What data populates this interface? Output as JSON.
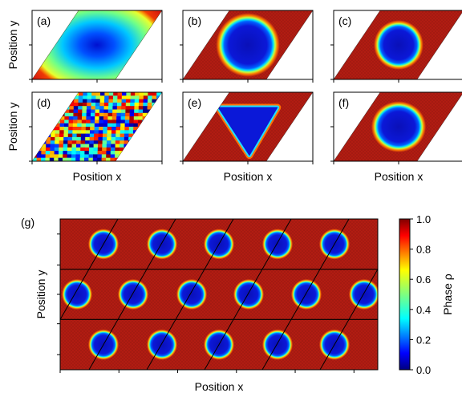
{
  "colors": {
    "jet": [
      "#00007f",
      "#0000ff",
      "#007fff",
      "#00ffff",
      "#7fff7f",
      "#ffff00",
      "#ff7f00",
      "#ff0000",
      "#7f0000"
    ],
    "background_phase": "#b11c12",
    "frame": "#000000"
  },
  "chart_data": [
    {
      "type": "heatmap",
      "panel_label": "(a)",
      "ylabel": "Position y",
      "xlabel": "",
      "content": "smooth-field"
    },
    {
      "type": "heatmap",
      "panel_label": "(b)",
      "ylabel": "",
      "xlabel": "",
      "content": "single-droplet",
      "droplet": {
        "shape": "circle",
        "radius": 0.36
      }
    },
    {
      "type": "heatmap",
      "panel_label": "(c)",
      "ylabel": "",
      "xlabel": "",
      "content": "single-droplet",
      "droplet": {
        "shape": "circle",
        "radius": 0.28
      }
    },
    {
      "type": "heatmap",
      "panel_label": "(d)",
      "ylabel": "Position y",
      "xlabel": "Position x",
      "content": "random-noise"
    },
    {
      "type": "heatmap",
      "panel_label": "(e)",
      "ylabel": "",
      "xlabel": "Position x",
      "content": "single-droplet",
      "droplet": {
        "shape": "triangle",
        "radius": 0.36
      }
    },
    {
      "type": "heatmap",
      "panel_label": "(f)",
      "ylabel": "",
      "xlabel": "Position x",
      "content": "single-droplet",
      "droplet": {
        "shape": "rounded",
        "radius": 0.3
      }
    },
    {
      "type": "heatmap",
      "panel_label": "(g)",
      "ylabel": "Position y",
      "xlabel": "Position x",
      "content": "droplet-lattice",
      "droplet_rows": [
        5,
        6,
        5
      ],
      "colorbar": {
        "label": "Phase ρ",
        "min": 0.0,
        "max": 1.0,
        "ticks": [
          "0.0",
          "0.2",
          "0.4",
          "0.6",
          "0.8",
          "1.0"
        ]
      }
    }
  ]
}
